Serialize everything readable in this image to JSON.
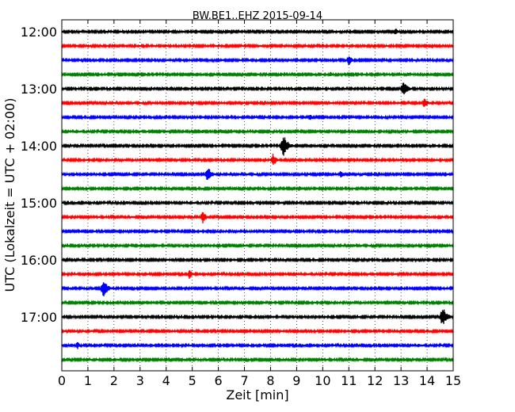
{
  "chart_data": {
    "type": "line",
    "title": "BW.BE1..EHZ 2015-09-14",
    "xlabel": "Zeit  [min]",
    "ylabel": "UTC (Lokalzeit = UTC + 02:00)",
    "xlim": [
      0,
      15
    ],
    "x_ticks": [
      "0",
      "1",
      "2",
      "3",
      "4",
      "5",
      "6",
      "7",
      "8",
      "9",
      "10",
      "11",
      "12",
      "13",
      "14",
      "15"
    ],
    "y_ticks": [
      "12:00",
      "13:00",
      "14:00",
      "15:00",
      "16:00",
      "17:00"
    ],
    "grid": "vertical-dotted",
    "series": [
      {
        "start": "12:00",
        "color": "#000000",
        "events": [
          [
            6.4,
            0.25
          ],
          [
            12.8,
            0.45
          ],
          [
            15.0,
            0.35
          ]
        ]
      },
      {
        "start": "12:15",
        "color": "#ff0000",
        "events": [
          [
            3.2,
            0.15
          ],
          [
            10.0,
            0.3
          ],
          [
            14.2,
            0.3
          ]
        ]
      },
      {
        "start": "12:30",
        "color": "#0000ff",
        "events": [
          [
            4.0,
            0.2
          ],
          [
            7.5,
            0.2
          ],
          [
            11.0,
            0.7
          ],
          [
            12.7,
            0.2
          ]
        ]
      },
      {
        "start": "12:45",
        "color": "#008000",
        "events": [
          [
            8.4,
            0.3
          ],
          [
            10.3,
            0.35
          ],
          [
            13.3,
            0.25
          ]
        ]
      },
      {
        "start": "13:00",
        "color": "#000000",
        "events": [
          [
            8.7,
            0.3
          ],
          [
            9.3,
            0.3
          ],
          [
            13.1,
            1.0
          ],
          [
            14.0,
            0.25
          ]
        ]
      },
      {
        "start": "13:15",
        "color": "#ff0000",
        "events": [
          [
            2.5,
            0.25
          ],
          [
            3.5,
            0.25
          ],
          [
            13.9,
            0.7
          ]
        ]
      },
      {
        "start": "13:30",
        "color": "#0000ff",
        "events": [
          [
            6.2,
            0.25
          ],
          [
            7.5,
            0.2
          ],
          [
            9.5,
            0.45
          ],
          [
            10.5,
            0.2
          ]
        ]
      },
      {
        "start": "13:45",
        "color": "#008000",
        "events": [
          [
            2.5,
            0.15
          ],
          [
            5.4,
            0.3
          ],
          [
            9.8,
            0.25
          ]
        ]
      },
      {
        "start": "14:00",
        "color": "#000000",
        "events": [
          [
            1.0,
            0.3
          ],
          [
            6.4,
            0.3
          ],
          [
            8.5,
            1.3
          ]
        ]
      },
      {
        "start": "14:15",
        "color": "#ff0000",
        "events": [
          [
            7.6,
            0.3
          ],
          [
            8.1,
            0.8
          ],
          [
            11.2,
            0.3
          ],
          [
            13.2,
            0.35
          ]
        ]
      },
      {
        "start": "14:30",
        "color": "#0000ff",
        "events": [
          [
            5.6,
            1.0
          ],
          [
            10.7,
            0.5
          ],
          [
            11.5,
            0.25
          ],
          [
            14.7,
            0.3
          ]
        ]
      },
      {
        "start": "14:45",
        "color": "#008000",
        "events": [
          [
            9.1,
            0.35
          ],
          [
            13.9,
            0.25
          ]
        ]
      },
      {
        "start": "15:00",
        "color": "#000000",
        "events": [
          [
            2.5,
            0.3
          ],
          [
            7.6,
            0.3
          ]
        ]
      },
      {
        "start": "15:15",
        "color": "#ff0000",
        "events": [
          [
            5.4,
            0.8
          ],
          [
            9.8,
            0.3
          ]
        ]
      },
      {
        "start": "15:30",
        "color": "#0000ff",
        "events": [
          [
            5.7,
            0.3
          ],
          [
            7.0,
            0.35
          ]
        ]
      },
      {
        "start": "15:45",
        "color": "#008000",
        "events": [
          [
            1.0,
            0.2
          ],
          [
            7.1,
            0.2
          ],
          [
            11.2,
            0.2
          ]
        ]
      },
      {
        "start": "16:00",
        "color": "#000000",
        "events": [
          [
            9.8,
            0.15
          ],
          [
            14.3,
            0.1
          ]
        ]
      },
      {
        "start": "16:15",
        "color": "#ff0000",
        "events": [
          [
            4.9,
            0.6
          ]
        ]
      },
      {
        "start": "16:30",
        "color": "#0000ff",
        "events": [
          [
            1.6,
            1.1
          ],
          [
            10.3,
            0.3
          ]
        ]
      },
      {
        "start": "16:45",
        "color": "#008000",
        "events": []
      },
      {
        "start": "17:00",
        "color": "#000000",
        "events": [
          [
            14.6,
            1.2
          ]
        ]
      },
      {
        "start": "17:15",
        "color": "#ff0000",
        "events": [
          [
            6.8,
            0.25
          ]
        ]
      },
      {
        "start": "17:30",
        "color": "#0000ff",
        "events": [
          [
            0.6,
            0.45
          ],
          [
            11.9,
            0.15
          ],
          [
            13.7,
            0.25
          ]
        ]
      },
      {
        "start": "17:45",
        "color": "#008000",
        "events": [
          [
            8.9,
            0.12
          ]
        ]
      }
    ]
  }
}
